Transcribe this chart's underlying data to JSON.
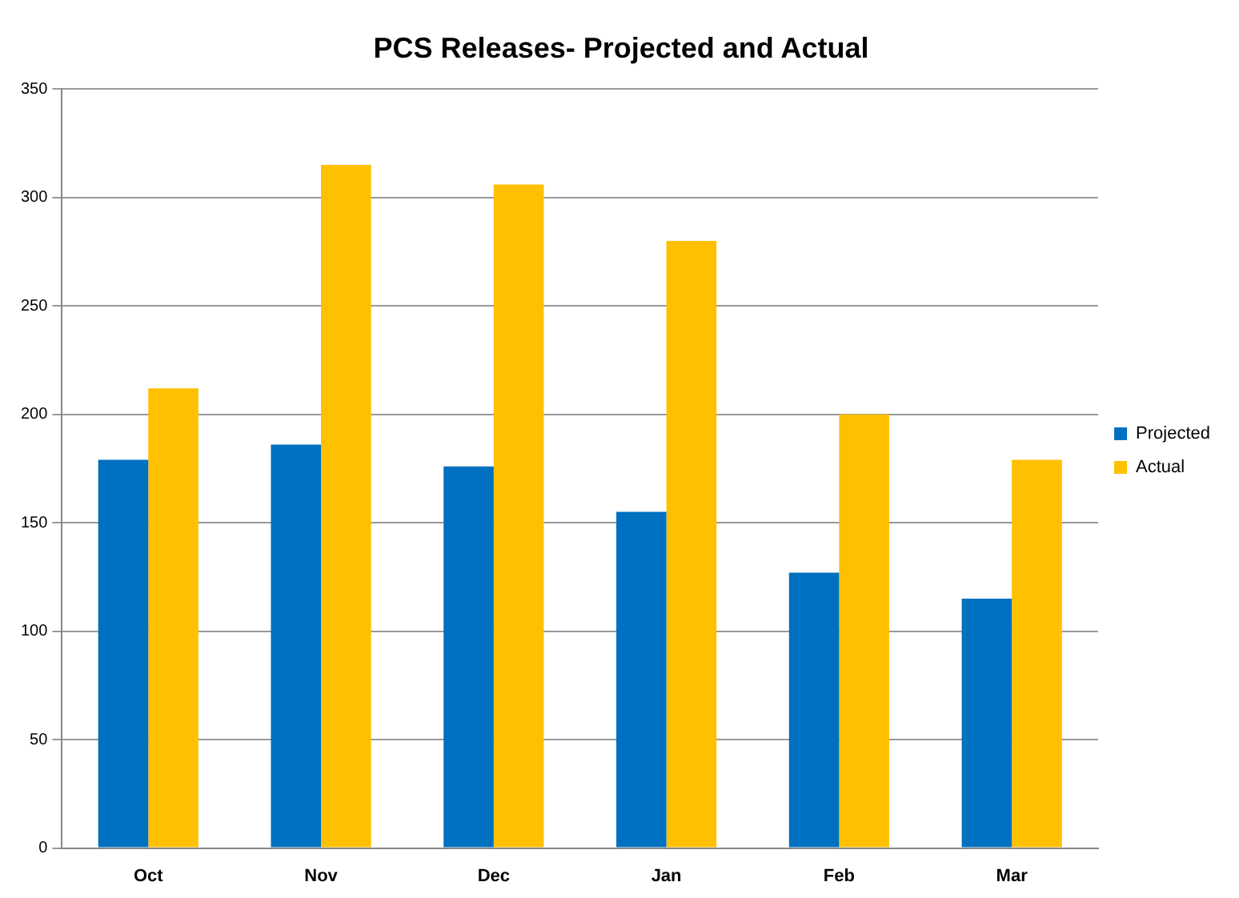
{
  "chart_data": {
    "type": "bar",
    "title": "PCS Releases- Projected and Actual",
    "categories": [
      "Oct",
      "Nov",
      "Dec",
      "Jan",
      "Feb",
      "Mar"
    ],
    "series": [
      {
        "name": "Projected",
        "color": "#0070c0",
        "values": [
          179,
          186,
          176,
          155,
          127,
          115
        ]
      },
      {
        "name": "Actual",
        "color": "#ffc000",
        "values": [
          212,
          315,
          306,
          280,
          200,
          179
        ]
      }
    ],
    "ylim": [
      0,
      350
    ],
    "yticks": [
      0,
      50,
      100,
      150,
      200,
      250,
      300,
      350
    ],
    "grid": "y",
    "legend": "right"
  }
}
